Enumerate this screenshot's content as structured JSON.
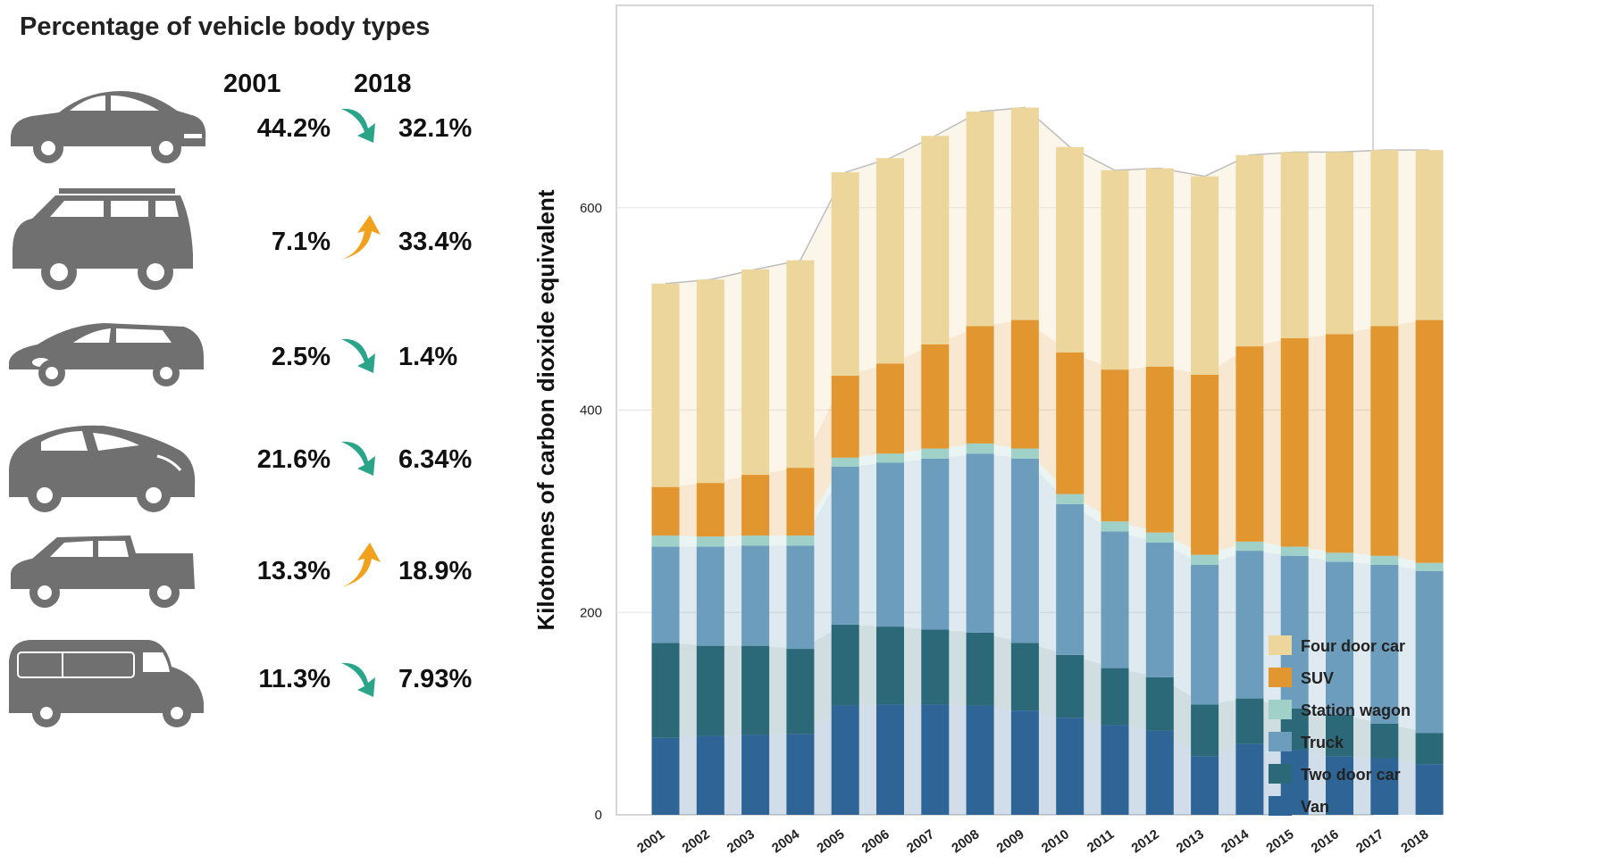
{
  "left_panel": {
    "title": "Percentage of vehicle body types",
    "year_from": "2001",
    "year_to": "2018",
    "rows": [
      {
        "vehicle": "four-door-car-icon",
        "from": "44.2%",
        "to": "32.1%",
        "trend": "down",
        "share_from": 44.2,
        "share_to": 32.1
      },
      {
        "vehicle": "suv-icon",
        "from": "7.1%",
        "to": "33.4%",
        "trend": "up",
        "share_from": 7.1,
        "share_to": 33.4
      },
      {
        "vehicle": "station-wagon-icon",
        "from": "2.5%",
        "to": "1.4%",
        "trend": "down",
        "share_from": 2.5,
        "share_to": 1.4
      },
      {
        "vehicle": "two-door-car-icon",
        "from": "21.6%",
        "to": "6.34%",
        "trend": "down",
        "share_from": 21.6,
        "share_to": 6.34
      },
      {
        "vehicle": "truck-icon",
        "from": "13.3%",
        "to": "18.9%",
        "trend": "up",
        "share_from": 13.3,
        "share_to": 18.9
      },
      {
        "vehicle": "van-icon",
        "from": "11.3%",
        "to": "7.93%",
        "trend": "down",
        "share_from": 11.3,
        "share_to": 7.93
      }
    ],
    "colors": {
      "down": "#2aa58a",
      "up": "#f2a11c",
      "vehicle": "#707070"
    }
  },
  "chart_data": {
    "type": "bar",
    "stacked": true,
    "ylabel": "Kilotonnes of carbon dioxide equivalent",
    "ylim": [
      0,
      800
    ],
    "yticks": [
      0,
      200,
      400,
      600
    ],
    "grid": true,
    "legend_position": "bottom-right",
    "categories": [
      "2001",
      "2002",
      "2003",
      "2004",
      "2005",
      "2006",
      "2007",
      "2008",
      "2009",
      "2010",
      "2011",
      "2012",
      "2013",
      "2014",
      "2015",
      "2016",
      "2017",
      "2018"
    ],
    "series": [
      {
        "name": "Van",
        "color": "#2e6596",
        "values": [
          76,
          78,
          79,
          80,
          108,
          109,
          109,
          108,
          103,
          96,
          89,
          83,
          58,
          70,
          64,
          58,
          56,
          50
        ]
      },
      {
        "name": "Two door car",
        "color": "#2b6878",
        "values": [
          94,
          89,
          88,
          84,
          80,
          77,
          74,
          72,
          67,
          62,
          56,
          53,
          51,
          45,
          41,
          41,
          34,
          31
        ]
      },
      {
        "name": "Truck",
        "color": "#6d9dbc",
        "values": [
          95,
          98,
          99,
          102,
          156,
          162,
          169,
          177,
          182,
          149,
          135,
          133,
          138,
          146,
          151,
          151,
          157,
          160
        ]
      },
      {
        "name": "Station wagon",
        "color": "#9fd1c9",
        "values": [
          11,
          10,
          10,
          10,
          9,
          9,
          10,
          10,
          10,
          10,
          10,
          10,
          10,
          9,
          9,
          9,
          9,
          8
        ]
      },
      {
        "name": "SUV",
        "color": "#e2962f",
        "values": [
          48,
          53,
          60,
          67,
          81,
          89,
          103,
          116,
          127,
          140,
          150,
          164,
          178,
          193,
          206,
          216,
          227,
          240
        ]
      },
      {
        "name": "Four door car",
        "color": "#ecd69c",
        "values": [
          201,
          201,
          203,
          205,
          201,
          203,
          206,
          212,
          210,
          203,
          197,
          196,
          196,
          189,
          184,
          180,
          174,
          168
        ]
      }
    ]
  }
}
